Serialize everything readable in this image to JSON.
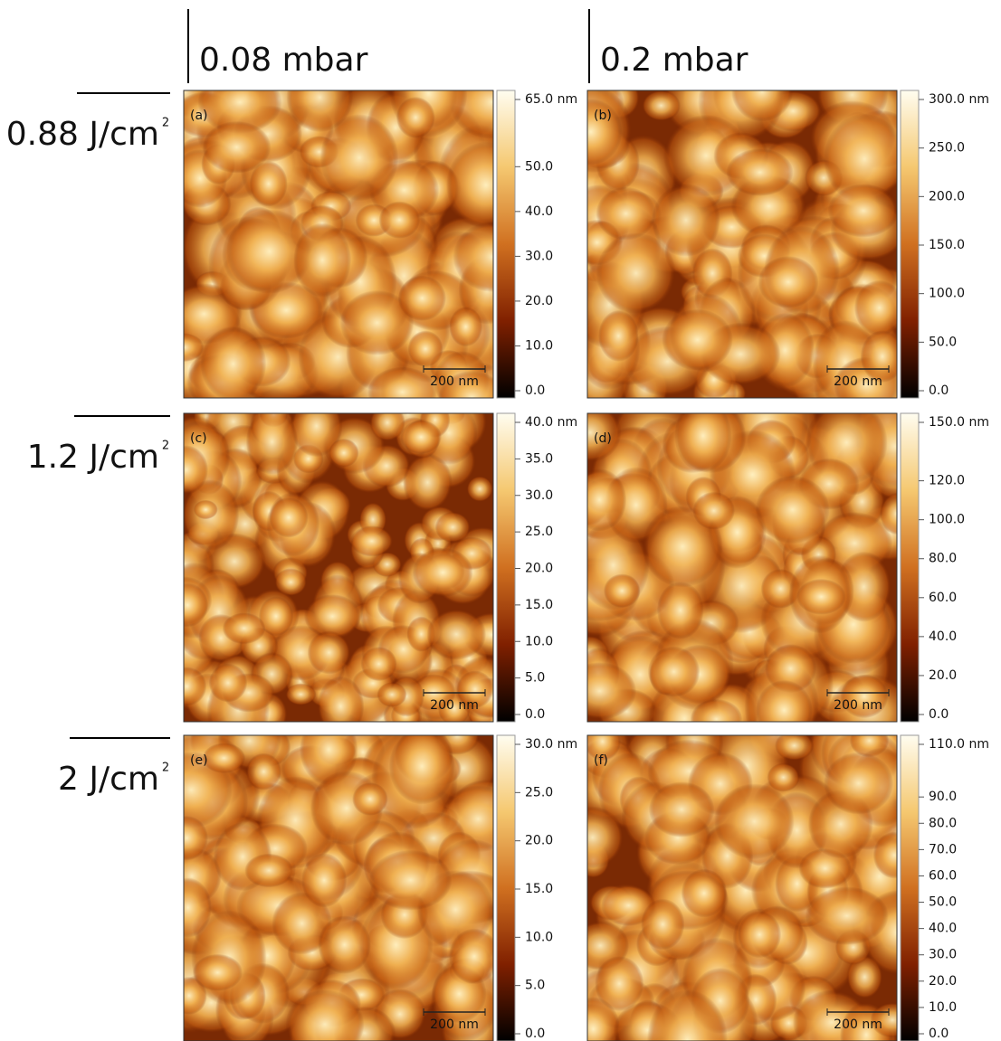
{
  "columns": [
    {
      "label": "0.08 mbar"
    },
    {
      "label": "0.2 mbar"
    }
  ],
  "rows": [
    {
      "label": "0.88 J/cm",
      "exponent": "2",
      "panels": [
        {
          "label": "(a)",
          "scale_bar": "200 nm",
          "colorbar_ticks": [
            {
              "value": 65,
              "label": "65.0 nm"
            },
            {
              "value": 50,
              "label": "50.0"
            },
            {
              "value": 40,
              "label": "40.0"
            },
            {
              "value": 30,
              "label": "30.0"
            },
            {
              "value": 20,
              "label": "20.0"
            },
            {
              "value": 10,
              "label": "10.0"
            },
            {
              "value": 0,
              "label": "0.0"
            }
          ]
        },
        {
          "label": "(b)",
          "scale_bar": "200 nm",
          "colorbar_ticks": [
            {
              "value": 300,
              "label": "300.0 nm"
            },
            {
              "value": 250,
              "label": "250.0"
            },
            {
              "value": 200,
              "label": "200.0"
            },
            {
              "value": 150,
              "label": "150.0"
            },
            {
              "value": 100,
              "label": "100.0"
            },
            {
              "value": 50,
              "label": "50.0"
            },
            {
              "value": 0,
              "label": "0.0"
            }
          ]
        }
      ]
    },
    {
      "label": "1.2 J/cm",
      "exponent": "2",
      "panels": [
        {
          "label": "(c)",
          "scale_bar": "200 nm",
          "colorbar_ticks": [
            {
              "value": 40,
              "label": "40.0 nm"
            },
            {
              "value": 35,
              "label": "35.0"
            },
            {
              "value": 30,
              "label": "30.0"
            },
            {
              "value": 25,
              "label": "25.0"
            },
            {
              "value": 20,
              "label": "20.0"
            },
            {
              "value": 15,
              "label": "15.0"
            },
            {
              "value": 10,
              "label": "10.0"
            },
            {
              "value": 5,
              "label": "5.0"
            },
            {
              "value": 0,
              "label": "0.0"
            }
          ]
        },
        {
          "label": "(d)",
          "scale_bar": "200 nm",
          "colorbar_ticks": [
            {
              "value": 150,
              "label": "150.0 nm"
            },
            {
              "value": 120,
              "label": "120.0"
            },
            {
              "value": 100,
              "label": "100.0"
            },
            {
              "value": 80,
              "label": "80.0"
            },
            {
              "value": 60,
              "label": "60.0"
            },
            {
              "value": 40,
              "label": "40.0"
            },
            {
              "value": 20,
              "label": "20.0"
            },
            {
              "value": 0,
              "label": "0.0"
            }
          ]
        }
      ]
    },
    {
      "label": "2 J/cm",
      "exponent": "2",
      "panels": [
        {
          "label": "(e)",
          "scale_bar": "200 nm",
          "colorbar_ticks": [
            {
              "value": 30,
              "label": "30.0 nm"
            },
            {
              "value": 25,
              "label": "25.0"
            },
            {
              "value": 20,
              "label": "20.0"
            },
            {
              "value": 15,
              "label": "15.0"
            },
            {
              "value": 10,
              "label": "10.0"
            },
            {
              "value": 5,
              "label": "5.0"
            },
            {
              "value": 0,
              "label": "0.0"
            }
          ]
        },
        {
          "label": "(f)",
          "scale_bar": "200 nm",
          "colorbar_ticks": [
            {
              "value": 110,
              "label": "110.0 nm"
            },
            {
              "value": 90,
              "label": "90.0"
            },
            {
              "value": 80,
              "label": "80.0"
            },
            {
              "value": 70,
              "label": "70.0"
            },
            {
              "value": 60,
              "label": "60.0"
            },
            {
              "value": 50,
              "label": "50.0"
            },
            {
              "value": 40,
              "label": "40.0"
            },
            {
              "value": 30,
              "label": "30.0"
            },
            {
              "value": 20,
              "label": "20.0"
            },
            {
              "value": 10,
              "label": "10.0"
            },
            {
              "value": 0,
              "label": "0.0"
            }
          ]
        }
      ]
    }
  ]
}
